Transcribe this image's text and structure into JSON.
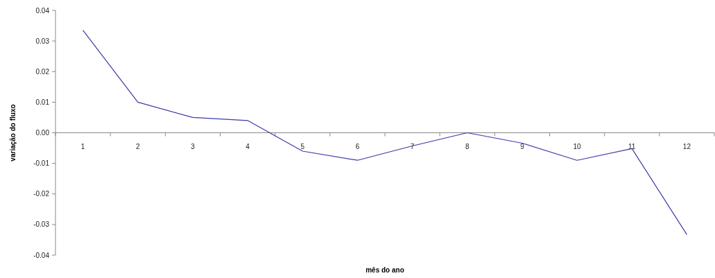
{
  "chart_data": {
    "type": "line",
    "xlabel": "mês do ano",
    "ylabel": "variação do fluxo",
    "categories": [
      "1",
      "2",
      "3",
      "4",
      "5",
      "6",
      "7",
      "8",
      "9",
      "10",
      "11",
      "12"
    ],
    "series": [
      {
        "color": "#3a3aa8",
        "values": [
          0.0335,
          0.01,
          0.005,
          0.004,
          -0.006,
          -0.009,
          -0.0043,
          0.0,
          -0.0034,
          -0.009,
          -0.0052,
          -0.0333
        ]
      }
    ],
    "ylim": [
      -0.04,
      0.04
    ],
    "yticks": [
      {
        "value": -0.04,
        "label": "-0.04"
      },
      {
        "value": -0.03,
        "label": "-0.03"
      },
      {
        "value": -0.02,
        "label": "-0.02"
      },
      {
        "value": -0.01,
        "label": "-0.01"
      },
      {
        "value": 0,
        "label": "0.00"
      },
      {
        "value": 0.01,
        "label": "0.01"
      },
      {
        "value": 0.02,
        "label": "0.02"
      },
      {
        "value": 0.03,
        "label": "0.03"
      },
      {
        "value": 0.04,
        "label": "0.04"
      }
    ],
    "grid": false,
    "marker": "none",
    "line_style": "solid"
  }
}
